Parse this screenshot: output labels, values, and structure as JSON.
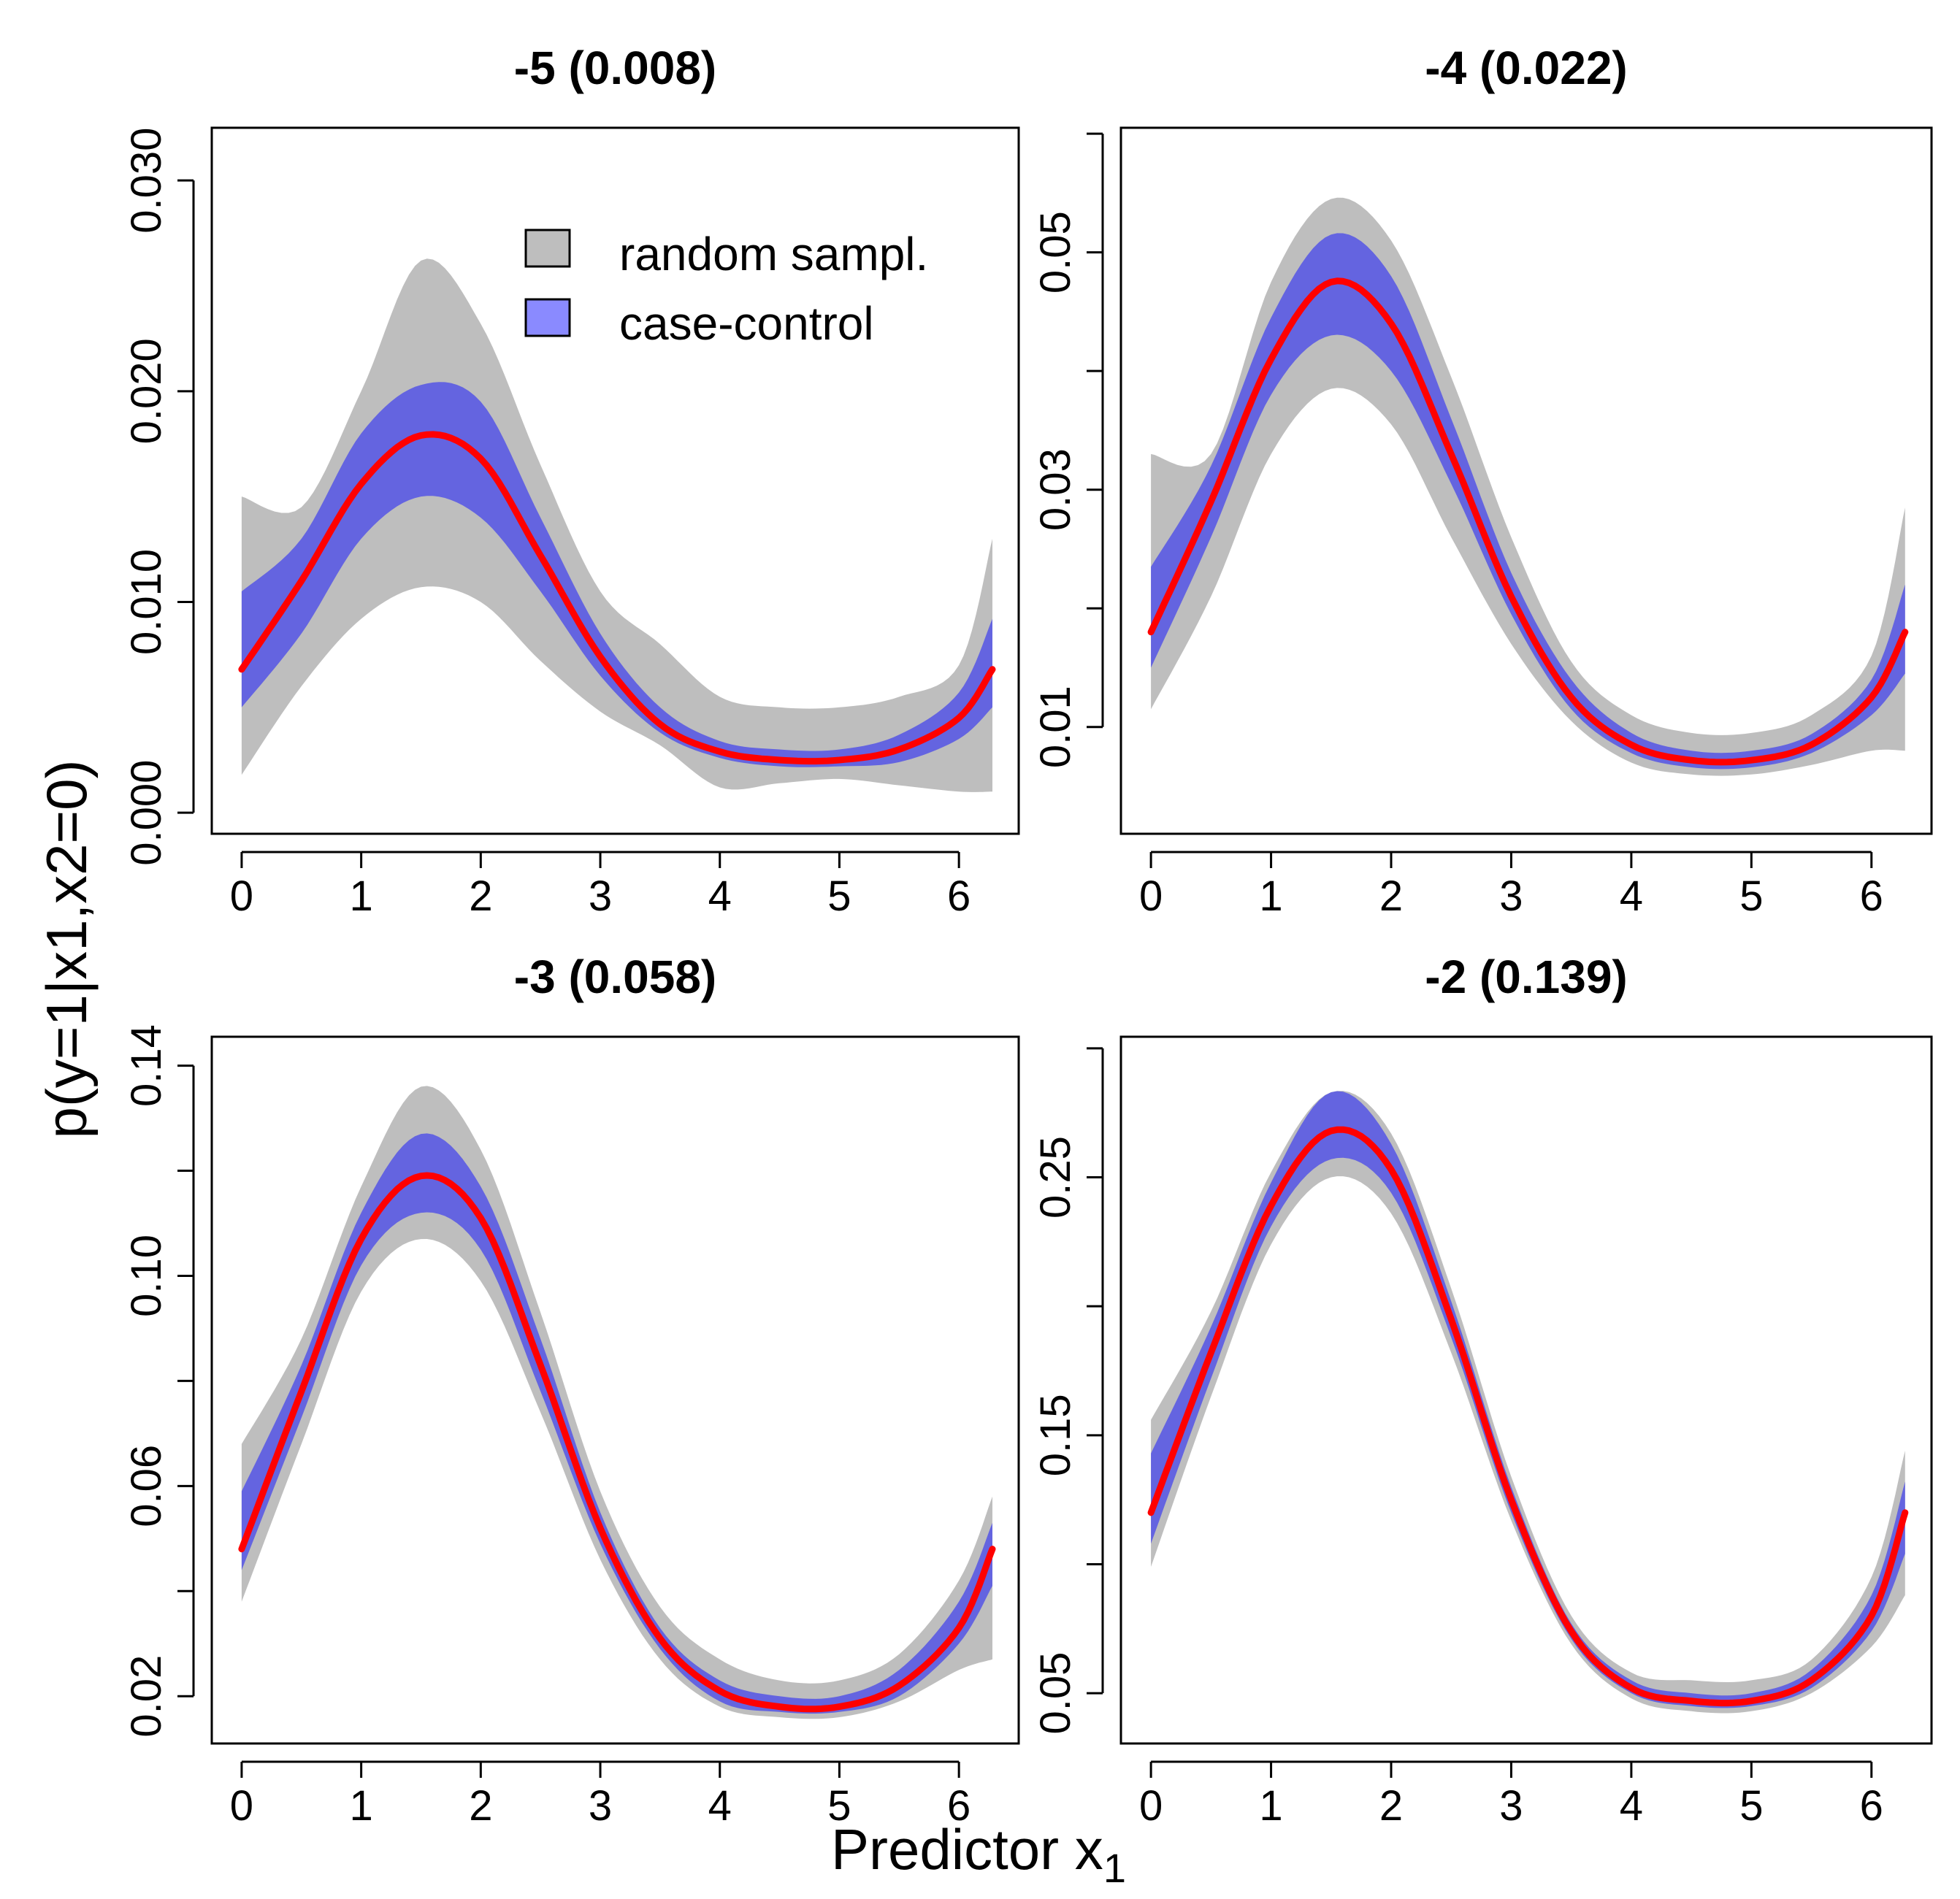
{
  "figure": {
    "ylabel": "p(y=1|x1,x2=0)",
    "xlabel": "Predictor x",
    "xlabel_subscript": "1"
  },
  "legend": {
    "placement": "top-right of first panel",
    "items": [
      {
        "label": "random sampl.",
        "color": "#bebebe"
      },
      {
        "label": "case-control",
        "color": "#6464e0"
      }
    ]
  },
  "colors": {
    "random_band": "#bebebe",
    "case_band": "#6464e0",
    "legend_case_swatch": "#8a8aff",
    "mean_line": "#ff0000"
  },
  "chart_data": [
    {
      "type": "area",
      "title": "-5 (0.008)",
      "intercept": -5,
      "mean_prob": 0.008,
      "xlim": [
        -0.25,
        6.5
      ],
      "ylim": [
        -0.001,
        0.0325
      ],
      "xticks": [
        0,
        1,
        2,
        3,
        4,
        5,
        6
      ],
      "xtick_labels": [
        "0",
        "1",
        "2",
        "3",
        "4",
        "5",
        "6"
      ],
      "yticks": [
        0.0,
        0.01,
        0.02,
        0.03
      ],
      "ytick_labels": [
        "0.000",
        "0.010",
        "0.020",
        "0.030"
      ],
      "x": [
        0,
        0.5,
        1,
        1.5,
        2,
        2.5,
        3,
        3.5,
        4,
        4.5,
        5,
        5.5,
        6,
        6.28
      ],
      "series": [
        {
          "name": "true",
          "values": [
            0.0068,
            0.011,
            0.0156,
            0.0179,
            0.0168,
            0.0122,
            0.0074,
            0.0042,
            0.0029,
            0.0025,
            0.0025,
            0.003,
            0.0045,
            0.0068
          ]
        },
        {
          "name": "random sampl. lower",
          "values": [
            0.0018,
            0.006,
            0.0092,
            0.0107,
            0.01,
            0.0072,
            0.0048,
            0.0032,
            0.0012,
            0.0014,
            0.0016,
            0.0013,
            0.001,
            0.001
          ]
        },
        {
          "name": "random sampl. upper",
          "values": [
            0.015,
            0.0145,
            0.02,
            0.0262,
            0.0232,
            0.0165,
            0.0105,
            0.008,
            0.0055,
            0.005,
            0.005,
            0.0055,
            0.007,
            0.013
          ]
        },
        {
          "name": "case-control lower",
          "values": [
            0.005,
            0.0085,
            0.013,
            0.015,
            0.014,
            0.0105,
            0.0065,
            0.0038,
            0.0026,
            0.0022,
            0.0022,
            0.0024,
            0.0035,
            0.005
          ]
        },
        {
          "name": "case-control upper",
          "values": [
            0.0105,
            0.013,
            0.018,
            0.0203,
            0.0195,
            0.014,
            0.0085,
            0.005,
            0.0034,
            0.003,
            0.003,
            0.0037,
            0.0057,
            0.0092
          ]
        }
      ]
    },
    {
      "type": "area",
      "title": "-4 (0.022)",
      "intercept": -4,
      "mean_prob": 0.022,
      "xlim": [
        -0.25,
        6.5
      ],
      "ylim": [
        0.001,
        0.0605
      ],
      "xticks": [
        0,
        1,
        2,
        3,
        4,
        5,
        6
      ],
      "xtick_labels": [
        "0",
        "1",
        "2",
        "3",
        "4",
        "5",
        "6"
      ],
      "yticks": [
        0.01,
        0.02,
        0.03,
        0.04,
        0.05,
        0.06
      ],
      "ytick_labels": [
        "0.01",
        "",
        "0.03",
        "",
        "0.05",
        ""
      ],
      "x": [
        0,
        0.5,
        1,
        1.5,
        2,
        2.5,
        3,
        3.5,
        4,
        4.5,
        5,
        5.5,
        6,
        6.28
      ],
      "series": [
        {
          "name": "true",
          "values": [
            0.018,
            0.029,
            0.041,
            0.0475,
            0.044,
            0.033,
            0.021,
            0.0125,
            0.0085,
            0.0072,
            0.0072,
            0.0085,
            0.0125,
            0.018
          ]
        },
        {
          "name": "random sampl. lower",
          "values": [
            0.0115,
            0.021,
            0.033,
            0.0385,
            0.0355,
            0.026,
            0.017,
            0.0105,
            0.007,
            0.006,
            0.006,
            0.0068,
            0.008,
            0.008
          ]
        },
        {
          "name": "random sampl. upper",
          "values": [
            0.033,
            0.033,
            0.0475,
            0.0545,
            0.051,
            0.0395,
            0.026,
            0.0155,
            0.011,
            0.0095,
            0.0095,
            0.011,
            0.016,
            0.0285
          ]
        },
        {
          "name": "case-control lower",
          "values": [
            0.015,
            0.026,
            0.038,
            0.043,
            0.04,
            0.0305,
            0.0195,
            0.0115,
            0.0078,
            0.0066,
            0.0066,
            0.0078,
            0.011,
            0.0145
          ]
        },
        {
          "name": "case-control upper",
          "values": [
            0.0235,
            0.032,
            0.0445,
            0.0515,
            0.048,
            0.036,
            0.023,
            0.014,
            0.0095,
            0.008,
            0.008,
            0.0094,
            0.014,
            0.022
          ]
        }
      ]
    },
    {
      "type": "area",
      "title": "-3 (0.058)",
      "intercept": -3,
      "mean_prob": 0.058,
      "xlim": [
        -0.25,
        6.5
      ],
      "ylim": [
        0.011,
        0.1455
      ],
      "xticks": [
        0,
        1,
        2,
        3,
        4,
        5,
        6
      ],
      "xtick_labels": [
        "0",
        "1",
        "2",
        "3",
        "4",
        "5",
        "6"
      ],
      "yticks": [
        0.02,
        0.04,
        0.06,
        0.08,
        0.1,
        0.12,
        0.14
      ],
      "ytick_labels": [
        "0.02",
        "",
        "0.06",
        "",
        "0.10",
        "",
        "0.14"
      ],
      "x": [
        0,
        0.5,
        1,
        1.5,
        2,
        2.5,
        3,
        3.5,
        4,
        4.5,
        5,
        5.5,
        6,
        6.28
      ],
      "series": [
        {
          "name": "true",
          "values": [
            0.048,
            0.078,
            0.107,
            0.119,
            0.111,
            0.083,
            0.052,
            0.031,
            0.021,
            0.018,
            0.018,
            0.022,
            0.033,
            0.048
          ]
        },
        {
          "name": "random sampl. lower",
          "values": [
            0.038,
            0.068,
            0.097,
            0.107,
            0.099,
            0.074,
            0.046,
            0.027,
            0.018,
            0.016,
            0.016,
            0.019,
            0.025,
            0.027
          ]
        },
        {
          "name": "random sampl. upper",
          "values": [
            0.068,
            0.088,
            0.117,
            0.136,
            0.124,
            0.093,
            0.059,
            0.037,
            0.027,
            0.023,
            0.023,
            0.028,
            0.042,
            0.058
          ]
        },
        {
          "name": "case-control lower",
          "values": [
            0.044,
            0.073,
            0.102,
            0.112,
            0.105,
            0.078,
            0.049,
            0.029,
            0.019,
            0.017,
            0.017,
            0.02,
            0.03,
            0.041
          ]
        },
        {
          "name": "case-control upper",
          "values": [
            0.059,
            0.083,
            0.112,
            0.127,
            0.117,
            0.088,
            0.055,
            0.033,
            0.023,
            0.02,
            0.02,
            0.025,
            0.038,
            0.053
          ]
        }
      ]
    },
    {
      "type": "area",
      "title": "-2 (0.139)",
      "intercept": -2,
      "mean_prob": 0.139,
      "xlim": [
        -0.25,
        6.5
      ],
      "ylim": [
        0.0305,
        0.3045
      ],
      "xticks": [
        0,
        1,
        2,
        3,
        4,
        5,
        6
      ],
      "xtick_labels": [
        "0",
        "1",
        "2",
        "3",
        "4",
        "5",
        "6"
      ],
      "yticks": [
        0.05,
        0.1,
        0.15,
        0.2,
        0.25,
        0.3
      ],
      "ytick_labels": [
        "0.05",
        "",
        "0.15",
        "",
        "0.25",
        ""
      ],
      "x": [
        0,
        0.5,
        1,
        1.5,
        2,
        2.5,
        3,
        3.5,
        4,
        4.5,
        5,
        5.5,
        6,
        6.28
      ],
      "series": [
        {
          "name": "true",
          "values": [
            0.12,
            0.182,
            0.239,
            0.268,
            0.253,
            0.195,
            0.125,
            0.074,
            0.052,
            0.047,
            0.047,
            0.055,
            0.08,
            0.12
          ]
        },
        {
          "name": "random sampl. lower",
          "values": [
            0.099,
            0.165,
            0.224,
            0.25,
            0.236,
            0.182,
            0.117,
            0.069,
            0.048,
            0.043,
            0.043,
            0.05,
            0.068,
            0.088
          ]
        },
        {
          "name": "random sampl. upper",
          "values": [
            0.156,
            0.198,
            0.252,
            0.283,
            0.267,
            0.207,
            0.134,
            0.08,
            0.058,
            0.055,
            0.055,
            0.063,
            0.095,
            0.144
          ]
        },
        {
          "name": "case-control lower",
          "values": [
            0.108,
            0.172,
            0.231,
            0.257,
            0.244,
            0.188,
            0.12,
            0.071,
            0.05,
            0.045,
            0.045,
            0.052,
            0.074,
            0.104
          ]
        },
        {
          "name": "case-control upper",
          "values": [
            0.143,
            0.192,
            0.248,
            0.283,
            0.263,
            0.202,
            0.13,
            0.077,
            0.055,
            0.05,
            0.05,
            0.059,
            0.088,
            0.132
          ]
        }
      ]
    }
  ]
}
